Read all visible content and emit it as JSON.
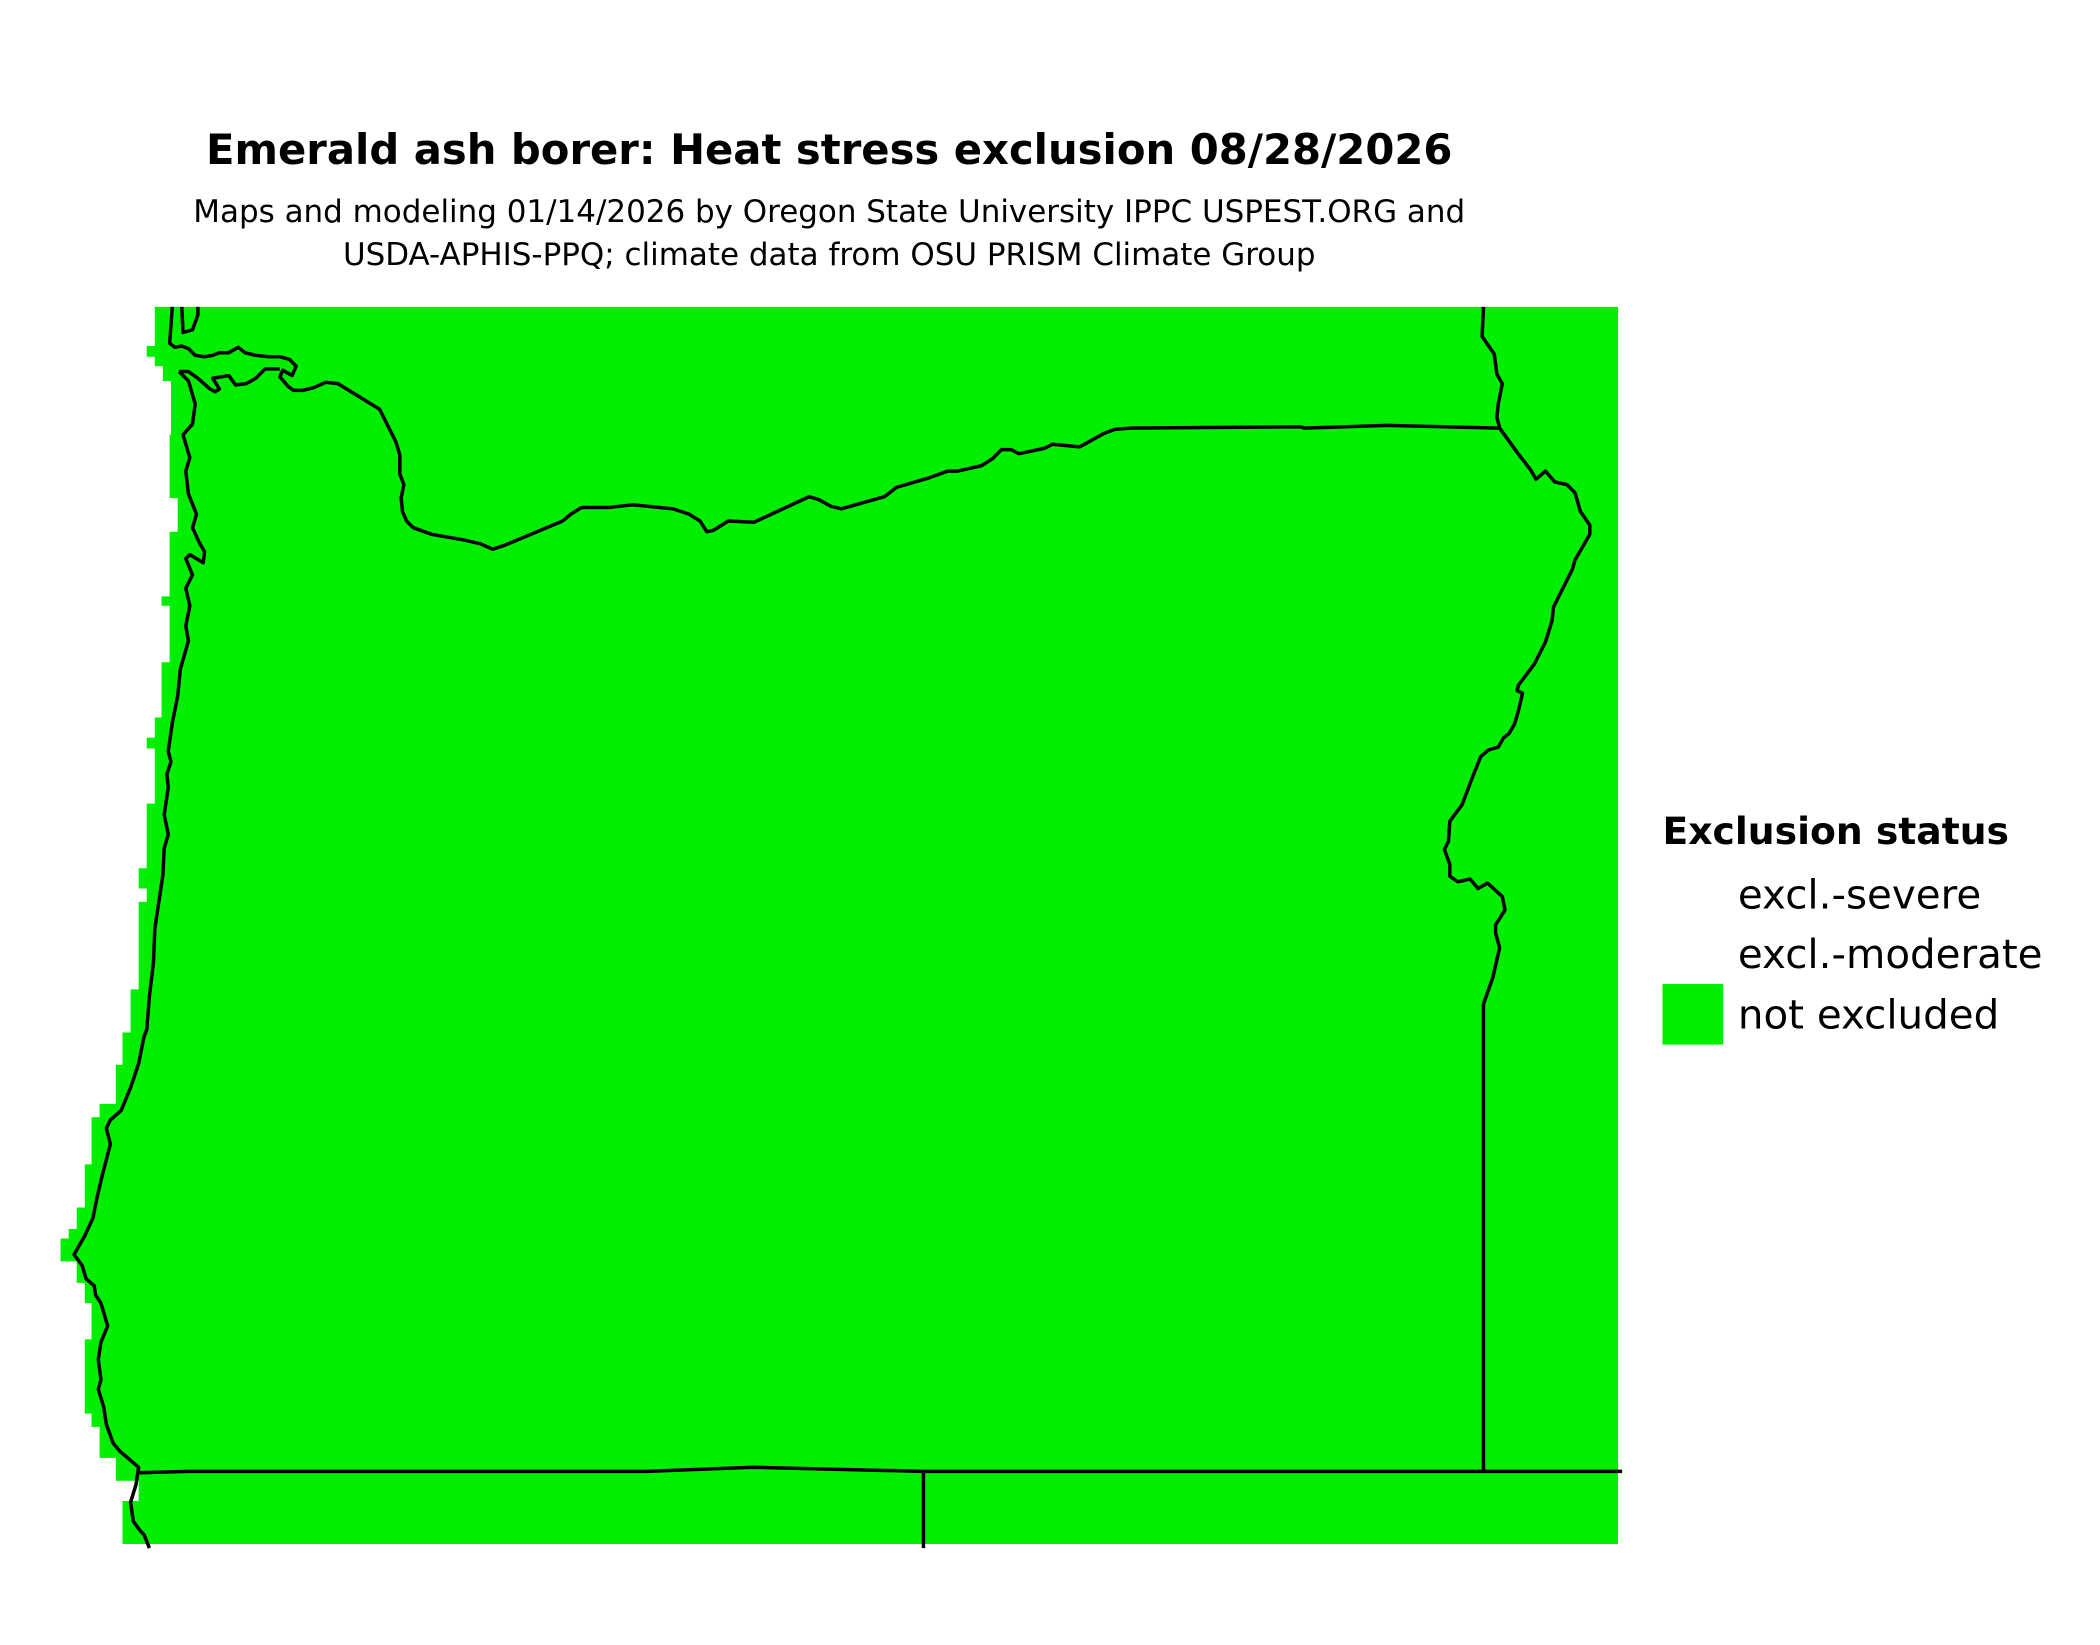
{
  "title": "Emerald ash borer: Heat stress exclusion 08/28/2026",
  "subtitle_line1": "Maps and modeling 01/14/2026 by Oregon State University IPPC USPEST.ORG and",
  "subtitle_line2": "USDA-APHIS-PPQ; climate data from OSU PRISM Climate Group",
  "map": {
    "region": "Oregon",
    "fill_status": "not excluded",
    "fill_color": "#00EE00"
  },
  "legend": {
    "title": "Exclusion status",
    "items": [
      {
        "label": "excl.-severe",
        "color": null
      },
      {
        "label": "excl.-moderate",
        "color": null
      },
      {
        "label": "not excluded",
        "color": "#00EE00"
      }
    ]
  }
}
